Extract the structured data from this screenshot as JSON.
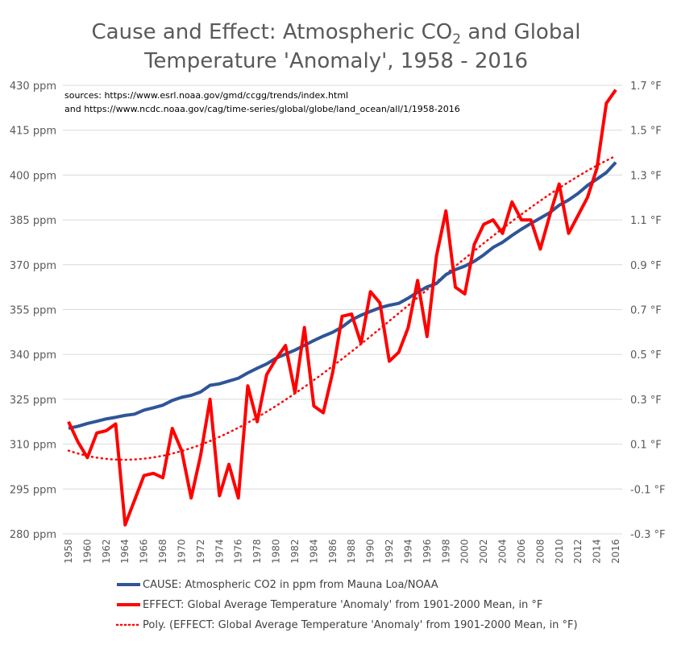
{
  "chart_data": {
    "type": "line",
    "title_line1_pre": "Cause and Effect: Atmospheric CO",
    "title_sub": "2",
    "title_line1_post": " and Global",
    "title_line2": "Temperature 'Anomaly', 1958 - 2016",
    "sources_line1": "sources: https://www.esrl.noaa.gov/gmd/ccgg/trends/index.html",
    "sources_line2": "and https://www.ncdc.noaa.gov/cag/time-series/global/globe/land_ocean/all/1/1958-2016",
    "x": [
      1958,
      1959,
      1960,
      1961,
      1962,
      1963,
      1964,
      1965,
      1966,
      1967,
      1968,
      1969,
      1970,
      1971,
      1972,
      1973,
      1974,
      1975,
      1976,
      1977,
      1978,
      1979,
      1980,
      1981,
      1982,
      1983,
      1984,
      1985,
      1986,
      1987,
      1988,
      1989,
      1990,
      1991,
      1992,
      1993,
      1994,
      1995,
      1996,
      1997,
      1998,
      1999,
      2000,
      2001,
      2002,
      2003,
      2004,
      2005,
      2006,
      2007,
      2008,
      2009,
      2010,
      2011,
      2012,
      2013,
      2014,
      2015,
      2016
    ],
    "x_tick_labels": [
      "1958",
      "1960",
      "1962",
      "1964",
      "1966",
      "1968",
      "1970",
      "1972",
      "1974",
      "1976",
      "1978",
      "1980",
      "1982",
      "1984",
      "1986",
      "1988",
      "1990",
      "1992",
      "1994",
      "1996",
      "1998",
      "2000",
      "2002",
      "2004",
      "2006",
      "2008",
      "2010",
      "2012",
      "2014",
      "2016"
    ],
    "y_left": {
      "min": 280,
      "max": 430,
      "ticks": [
        "280 ppm",
        "295 ppm",
        "310 ppm",
        "325 ppm",
        "340 ppm",
        "355 ppm",
        "370 ppm",
        "385 ppm",
        "400 ppm",
        "415 ppm",
        "430 ppm"
      ]
    },
    "y_right": {
      "min": -0.3,
      "max": 1.7,
      "ticks": [
        "-0.3 °F",
        "-0.1 °F",
        "0.1 °F",
        "0.3 °F",
        "0.5 °F",
        "0.7 °F",
        "0.9 °F",
        "1.1 °F",
        "1.3 °F",
        "1.5 °F",
        "1.7 °F"
      ]
    },
    "grid": true,
    "legend_position": "bottom",
    "series": [
      {
        "name": "CAUSE: Atmospheric CO2 in ppm from Mauna Loa/NOAA",
        "axis": "left",
        "color": "#2F5597",
        "values": [
          315.3,
          315.97,
          316.91,
          317.64,
          318.45,
          318.99,
          319.62,
          320.04,
          321.38,
          322.16,
          323.04,
          324.62,
          325.68,
          326.32,
          327.45,
          329.68,
          330.18,
          331.11,
          332.04,
          333.83,
          335.4,
          336.84,
          338.75,
          340.11,
          341.45,
          343.05,
          344.65,
          346.12,
          347.42,
          349.19,
          351.57,
          353.12,
          354.39,
          355.61,
          356.45,
          357.1,
          358.83,
          360.82,
          362.61,
          363.73,
          366.7,
          368.38,
          369.55,
          371.14,
          373.28,
          375.8,
          377.52,
          379.8,
          381.9,
          383.79,
          385.6,
          387.43,
          389.9,
          391.65,
          393.85,
          396.52,
          398.65,
          400.83,
          404.24
        ]
      },
      {
        "name": "EFFECT: Global Average Temperature 'Anomaly' from 1901-2000 Mean, in °F",
        "axis": "right",
        "color": "#FF0000",
        "values": [
          0.2,
          0.11,
          0.04,
          0.15,
          0.16,
          0.19,
          -0.26,
          -0.15,
          -0.04,
          -0.03,
          -0.05,
          0.17,
          0.07,
          -0.14,
          0.05,
          0.3,
          -0.13,
          0.01,
          -0.14,
          0.36,
          0.2,
          0.41,
          0.48,
          0.54,
          0.33,
          0.62,
          0.27,
          0.24,
          0.42,
          0.67,
          0.68,
          0.55,
          0.78,
          0.73,
          0.47,
          0.51,
          0.62,
          0.83,
          0.58,
          0.94,
          1.14,
          0.8,
          0.77,
          0.99,
          1.08,
          1.1,
          1.04,
          1.18,
          1.1,
          1.1,
          0.97,
          1.12,
          1.26,
          1.04,
          1.12,
          1.2,
          1.33,
          1.62,
          1.68
        ]
      },
      {
        "name": "Poly. (EFFECT: Global Average Temperature 'Anomaly' from 1901-2000 Mean, in °F)",
        "axis": "right",
        "color": "#FF0000",
        "trendline_of": 1,
        "order": 3
      }
    ]
  }
}
